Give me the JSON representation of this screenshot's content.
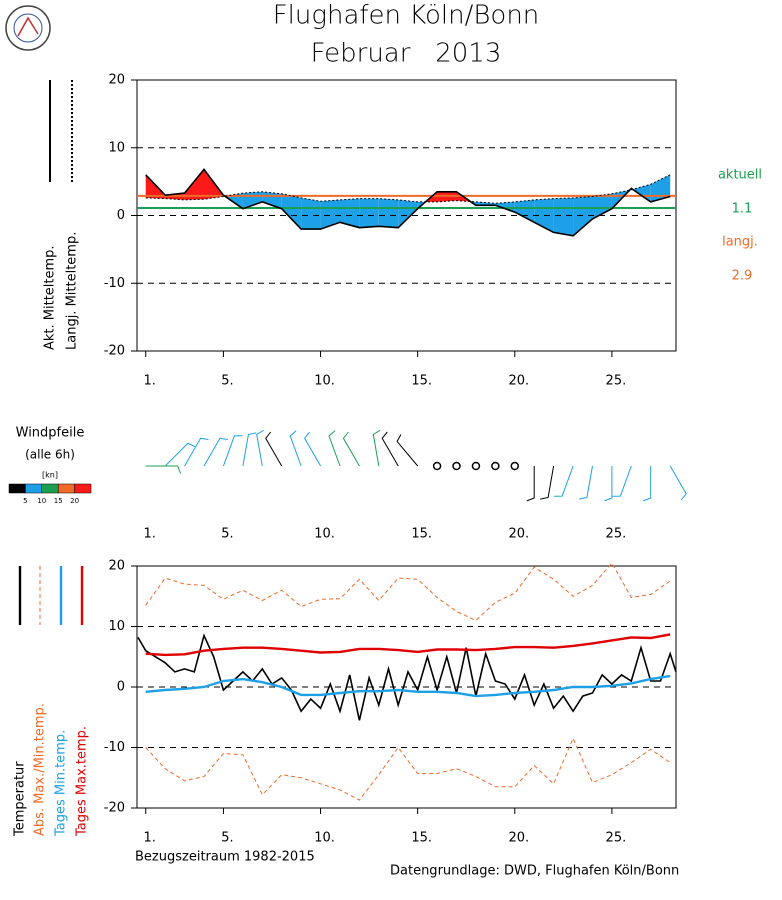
{
  "header": {
    "title": "Flughafen Köln/Bonn",
    "subtitle": "Februar   2013"
  },
  "chart_data": [
    {
      "type": "line",
      "fill_difference": {
        "above": "#ff1a1a",
        "below": "#1ea0e6"
      },
      "x": [
        1,
        2,
        3,
        4,
        5,
        6,
        7,
        8,
        9,
        10,
        11,
        12,
        13,
        14,
        15,
        16,
        17,
        18,
        19,
        20,
        21,
        22,
        23,
        24,
        25,
        26,
        27,
        28
      ],
      "xlim": [
        0.55,
        28.3
      ],
      "xticks": [
        {
          "value": 1,
          "label": "1."
        },
        {
          "value": 5,
          "label": "5."
        },
        {
          "value": 10,
          "label": "10."
        },
        {
          "value": 15,
          "label": "15."
        },
        {
          "value": 20,
          "label": "20."
        },
        {
          "value": 25,
          "label": "25."
        }
      ],
      "ylim": [
        -20,
        20
      ],
      "yticks": [
        -20,
        -10,
        0,
        10,
        20
      ],
      "grid": "dashed",
      "series": [
        {
          "name": "Akt. Mitteltemp.",
          "color": "#000000",
          "values": [
            6,
            3,
            3.3,
            6.8,
            3,
            1,
            2,
            1,
            -2,
            -2,
            -1,
            -1.8,
            -1.6,
            -1.8,
            1,
            3.5,
            3.5,
            1.5,
            1.5,
            0.5,
            -1,
            -2.5,
            -3,
            -0.5,
            1,
            4,
            2,
            2.8
          ]
        },
        {
          "name": "Langj. Mitteltemp.",
          "color": "#000000",
          "dash": true,
          "values": [
            2.6,
            2.5,
            2.3,
            2.4,
            2.8,
            3.3,
            3.5,
            3.2,
            2.6,
            2.1,
            2.3,
            2.5,
            2.5,
            2.3,
            2,
            2,
            2.2,
            2,
            1.8,
            2,
            2.3,
            2.5,
            2.6,
            2.8,
            3.2,
            3.8,
            4.6,
            6
          ]
        }
      ],
      "reference_lines": [
        {
          "name": "aktuell",
          "value": 1.1,
          "color": "#1aa050"
        },
        {
          "name": "langj.",
          "value": 2.9,
          "color": "#f06a28"
        }
      ]
    },
    {
      "type": "wind",
      "title": "Windpfeile",
      "subtitle": "(alle 6h)",
      "unit": "[kn]",
      "scale_ticks": [
        5,
        10,
        15,
        20
      ],
      "scale_colors": [
        "#000000",
        "#1ea0e6",
        "#1aa050",
        "#f06a28",
        "#ff1a1a"
      ],
      "x": [
        1,
        2,
        3,
        4,
        5,
        6,
        7,
        8,
        9,
        10,
        11,
        12,
        13,
        14,
        15,
        16,
        17,
        18,
        19,
        20,
        21,
        22,
        23,
        24,
        25,
        26,
        27,
        28
      ],
      "xlim": [
        0.55,
        28.3
      ],
      "xticks": [
        {
          "value": 1,
          "label": "1."
        },
        {
          "value": 5,
          "label": "5."
        },
        {
          "value": 10,
          "label": "10."
        },
        {
          "value": 15,
          "label": "15."
        },
        {
          "value": 20,
          "label": "20."
        },
        {
          "value": 25,
          "label": "25."
        }
      ],
      "direction": [
        90,
        45,
        30,
        30,
        20,
        10,
        350,
        330,
        340,
        330,
        340,
        330,
        350,
        330,
        320,
        0,
        0,
        0,
        0,
        0,
        180,
        190,
        200,
        190,
        180,
        200,
        180,
        150
      ],
      "speed": [
        10,
        8,
        8,
        7,
        8,
        8,
        6,
        4,
        5,
        8,
        10,
        10,
        12,
        4,
        3,
        1,
        1,
        1,
        1,
        1,
        3,
        4,
        7,
        8,
        8,
        7,
        5,
        8
      ]
    },
    {
      "type": "line",
      "x": [
        1,
        2,
        3,
        4,
        5,
        6,
        7,
        8,
        9,
        10,
        11,
        12,
        13,
        14,
        15,
        16,
        17,
        18,
        19,
        20,
        21,
        22,
        23,
        24,
        25,
        26,
        27,
        28
      ],
      "xlim": [
        0.55,
        28.3
      ],
      "xticks": [
        {
          "value": 1,
          "label": "1."
        },
        {
          "value": 5,
          "label": "5."
        },
        {
          "value": 10,
          "label": "10."
        },
        {
          "value": 15,
          "label": "15."
        },
        {
          "value": 20,
          "label": "20."
        },
        {
          "value": 25,
          "label": "25."
        }
      ],
      "ylim": [
        -20,
        20
      ],
      "yticks": [
        -20,
        -10,
        0,
        10,
        20
      ],
      "grid": "dashed",
      "series": [
        {
          "name": "Temperatur",
          "color": "#000000",
          "x": [
            0.6,
            1,
            1.5,
            2,
            2.5,
            3,
            3.5,
            4,
            4.5,
            5,
            5.5,
            6,
            6.5,
            7,
            7.5,
            8,
            8.5,
            9,
            9.5,
            10,
            10.5,
            11,
            11.5,
            12,
            12.5,
            13,
            13.5,
            14,
            14.5,
            15,
            15.5,
            16,
            16.5,
            17,
            17.5,
            18,
            18.5,
            19,
            19.5,
            20,
            20.5,
            21,
            21.5,
            22,
            22.5,
            23,
            23.5,
            24,
            24.5,
            25,
            25.5,
            26,
            26.5,
            27,
            27.5,
            28,
            28.3
          ],
          "values": [
            8.2,
            6,
            5,
            4,
            2.5,
            3,
            2.5,
            8.5,
            5,
            -0.5,
            1,
            2.5,
            1,
            3,
            0.5,
            1.5,
            -0.5,
            -4,
            -2,
            -3.5,
            0.5,
            -4,
            2,
            -5.5,
            1.5,
            -3,
            3,
            -3,
            2.5,
            -0.5,
            5,
            -0.5,
            5,
            -1,
            6.5,
            -1.5,
            5.5,
            1,
            0.5,
            -2,
            2,
            -3,
            0.5,
            -3.5,
            -1.5,
            -4,
            -1.5,
            -1,
            2,
            0.5,
            2,
            1,
            6.5,
            1,
            1,
            5.5,
            2.5
          ]
        },
        {
          "name": "Abs. Max./Min.temp.",
          "color": "#f06a28",
          "dash": true,
          "max": [
            13.5,
            18,
            17,
            16.8,
            14.5,
            16,
            14.3,
            16,
            13.3,
            14.5,
            14.6,
            17.8,
            14.3,
            18,
            17.8,
            14.8,
            12.5,
            11,
            14,
            15.5,
            19.8,
            17.8,
            15,
            16.8,
            20.5,
            14.8,
            15.3,
            17.5
          ],
          "min": [
            -10,
            -13.5,
            -15.5,
            -14.8,
            -11,
            -11.2,
            -17.8,
            -14.5,
            -15,
            -16,
            -17,
            -18.7,
            -14.5,
            -10,
            -14.3,
            -14.3,
            -13.5,
            -14.8,
            -16.5,
            -16.5,
            -13,
            -16,
            -8.5,
            -15.8,
            -14.5,
            -12.5,
            -10.3,
            -12.5
          ]
        },
        {
          "name": "Tages Min.temp.",
          "color": "#1ea0e6",
          "values": [
            -0.8,
            -0.5,
            -0.3,
            0,
            1,
            1.3,
            0.8,
            0,
            -1.3,
            -1.3,
            -1,
            -0.7,
            -0.7,
            -0.5,
            -0.8,
            -0.8,
            -1,
            -1.5,
            -1.3,
            -1,
            -0.8,
            -0.5,
            0,
            0,
            0.2,
            0.6,
            1.3,
            1.8
          ]
        },
        {
          "name": "Tages Max.temp.",
          "color": "#e00000",
          "values": [
            5.5,
            5.3,
            5.4,
            6,
            6.3,
            6.5,
            6.5,
            6.3,
            6,
            5.7,
            5.8,
            6.3,
            6.3,
            6.1,
            5.8,
            6.2,
            6.2,
            6.1,
            6.3,
            6.6,
            6.6,
            6.5,
            6.8,
            7.2,
            7.7,
            8.2,
            8.1,
            8.7
          ]
        }
      ]
    }
  ],
  "footer": {
    "period": "Bezugszeitraum 1982-2015",
    "source": "Datengrundlage: DWD, Flughafen Köln/Bonn"
  }
}
